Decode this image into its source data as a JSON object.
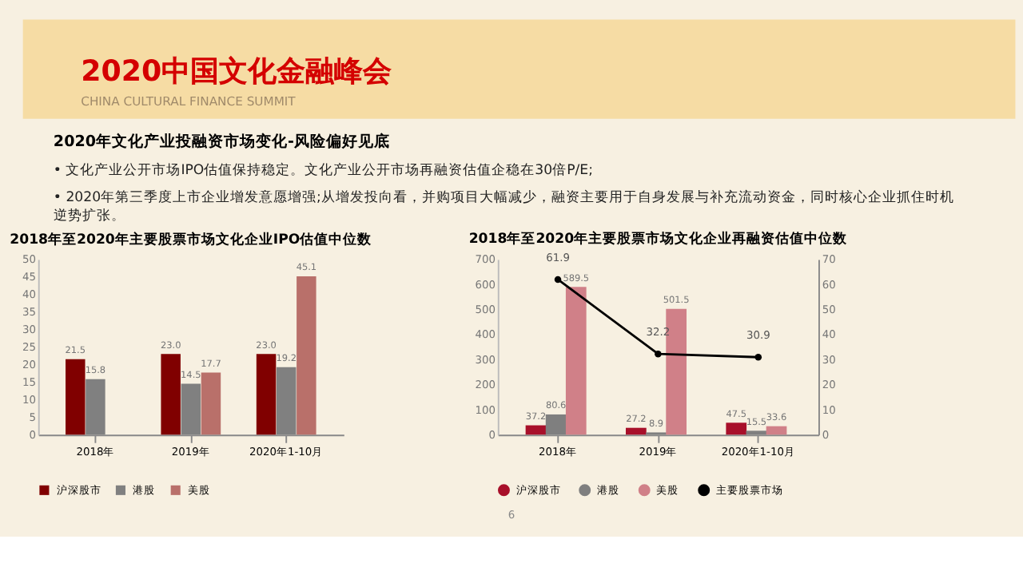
{
  "chart_data": [
    {
      "type": "bar",
      "title": "2018年至2020年主要股票市场文化企业IPO估值中位数",
      "annotations": [
        "2020中国文化金融峰会",
        "CHINA CULTURAL FINANCE SUMMIT",
        "2020年文化产业投融资市场变化-风险偏好见底",
        "• 文化产业公开市场IPO估值保持稳定。文化产业公开市场再融资估值企稳在30倍P/E;",
        "• 2020年第三季度上市企业增发意愿增强;从增发投向看，并购项目大幅减少，融资主要用于自身发展与补充流动资金，同时核心企业抓住时机逆势扩张。",
        "6"
      ],
      "categories": [
        "2018年",
        "2019年",
        "2020年1-10月"
      ],
      "series": [
        {
          "name": "沪深股市",
          "color": "#800000",
          "values": [
            21.5,
            23.0,
            23.0
          ],
          "value_labels": [
            "21.5",
            "23.0",
            "23.0"
          ]
        },
        {
          "name": "港股",
          "color": "#808080",
          "values": [
            15.8,
            14.5,
            19.2
          ],
          "value_labels": [
            "15.8",
            "14.5",
            "19.2"
          ]
        },
        {
          "name": "美股",
          "color": "#b9706a",
          "values": [
            null,
            17.7,
            45.1
          ],
          "value_labels": [
            null,
            "17.7",
            "45.1"
          ]
        }
      ],
      "ylim": [
        0,
        50
      ],
      "yticks": [
        0,
        5,
        10,
        15,
        20,
        25,
        30,
        35,
        40,
        45,
        50
      ],
      "legend": "bottom",
      "grid": false
    },
    {
      "type": "bar",
      "title": "2018年至2020年主要股票市场文化企业再融资估值中位数",
      "categories": [
        "2018年",
        "2019年",
        "2020年1-10月"
      ],
      "series": [
        {
          "name": "沪深股市",
          "color": "#a8102a",
          "values": [
            37.2,
            27.2,
            47.5
          ]
        },
        {
          "name": "港股",
          "color": "#7f7f7f",
          "values": [
            80.6,
            8.9,
            15.5
          ]
        },
        {
          "name": "美股",
          "color": "#d08088",
          "values": [
            589.5,
            501.5,
            33.6
          ]
        },
        {
          "name": "主要股票市场",
          "color": "#000000",
          "type": "line",
          "axis": "y2",
          "marker": "circle",
          "values": [
            61.9,
            32.2,
            30.9
          ]
        }
      ],
      "ylim": [
        0,
        700
      ],
      "yticks": [
        0,
        100,
        200,
        300,
        400,
        500,
        600,
        700
      ],
      "y2lim": [
        0,
        70
      ],
      "y2ticks": [
        0,
        10,
        20,
        30,
        40,
        50,
        60,
        70
      ],
      "data_labels": true,
      "legend": "bottom",
      "grid": false
    }
  ]
}
